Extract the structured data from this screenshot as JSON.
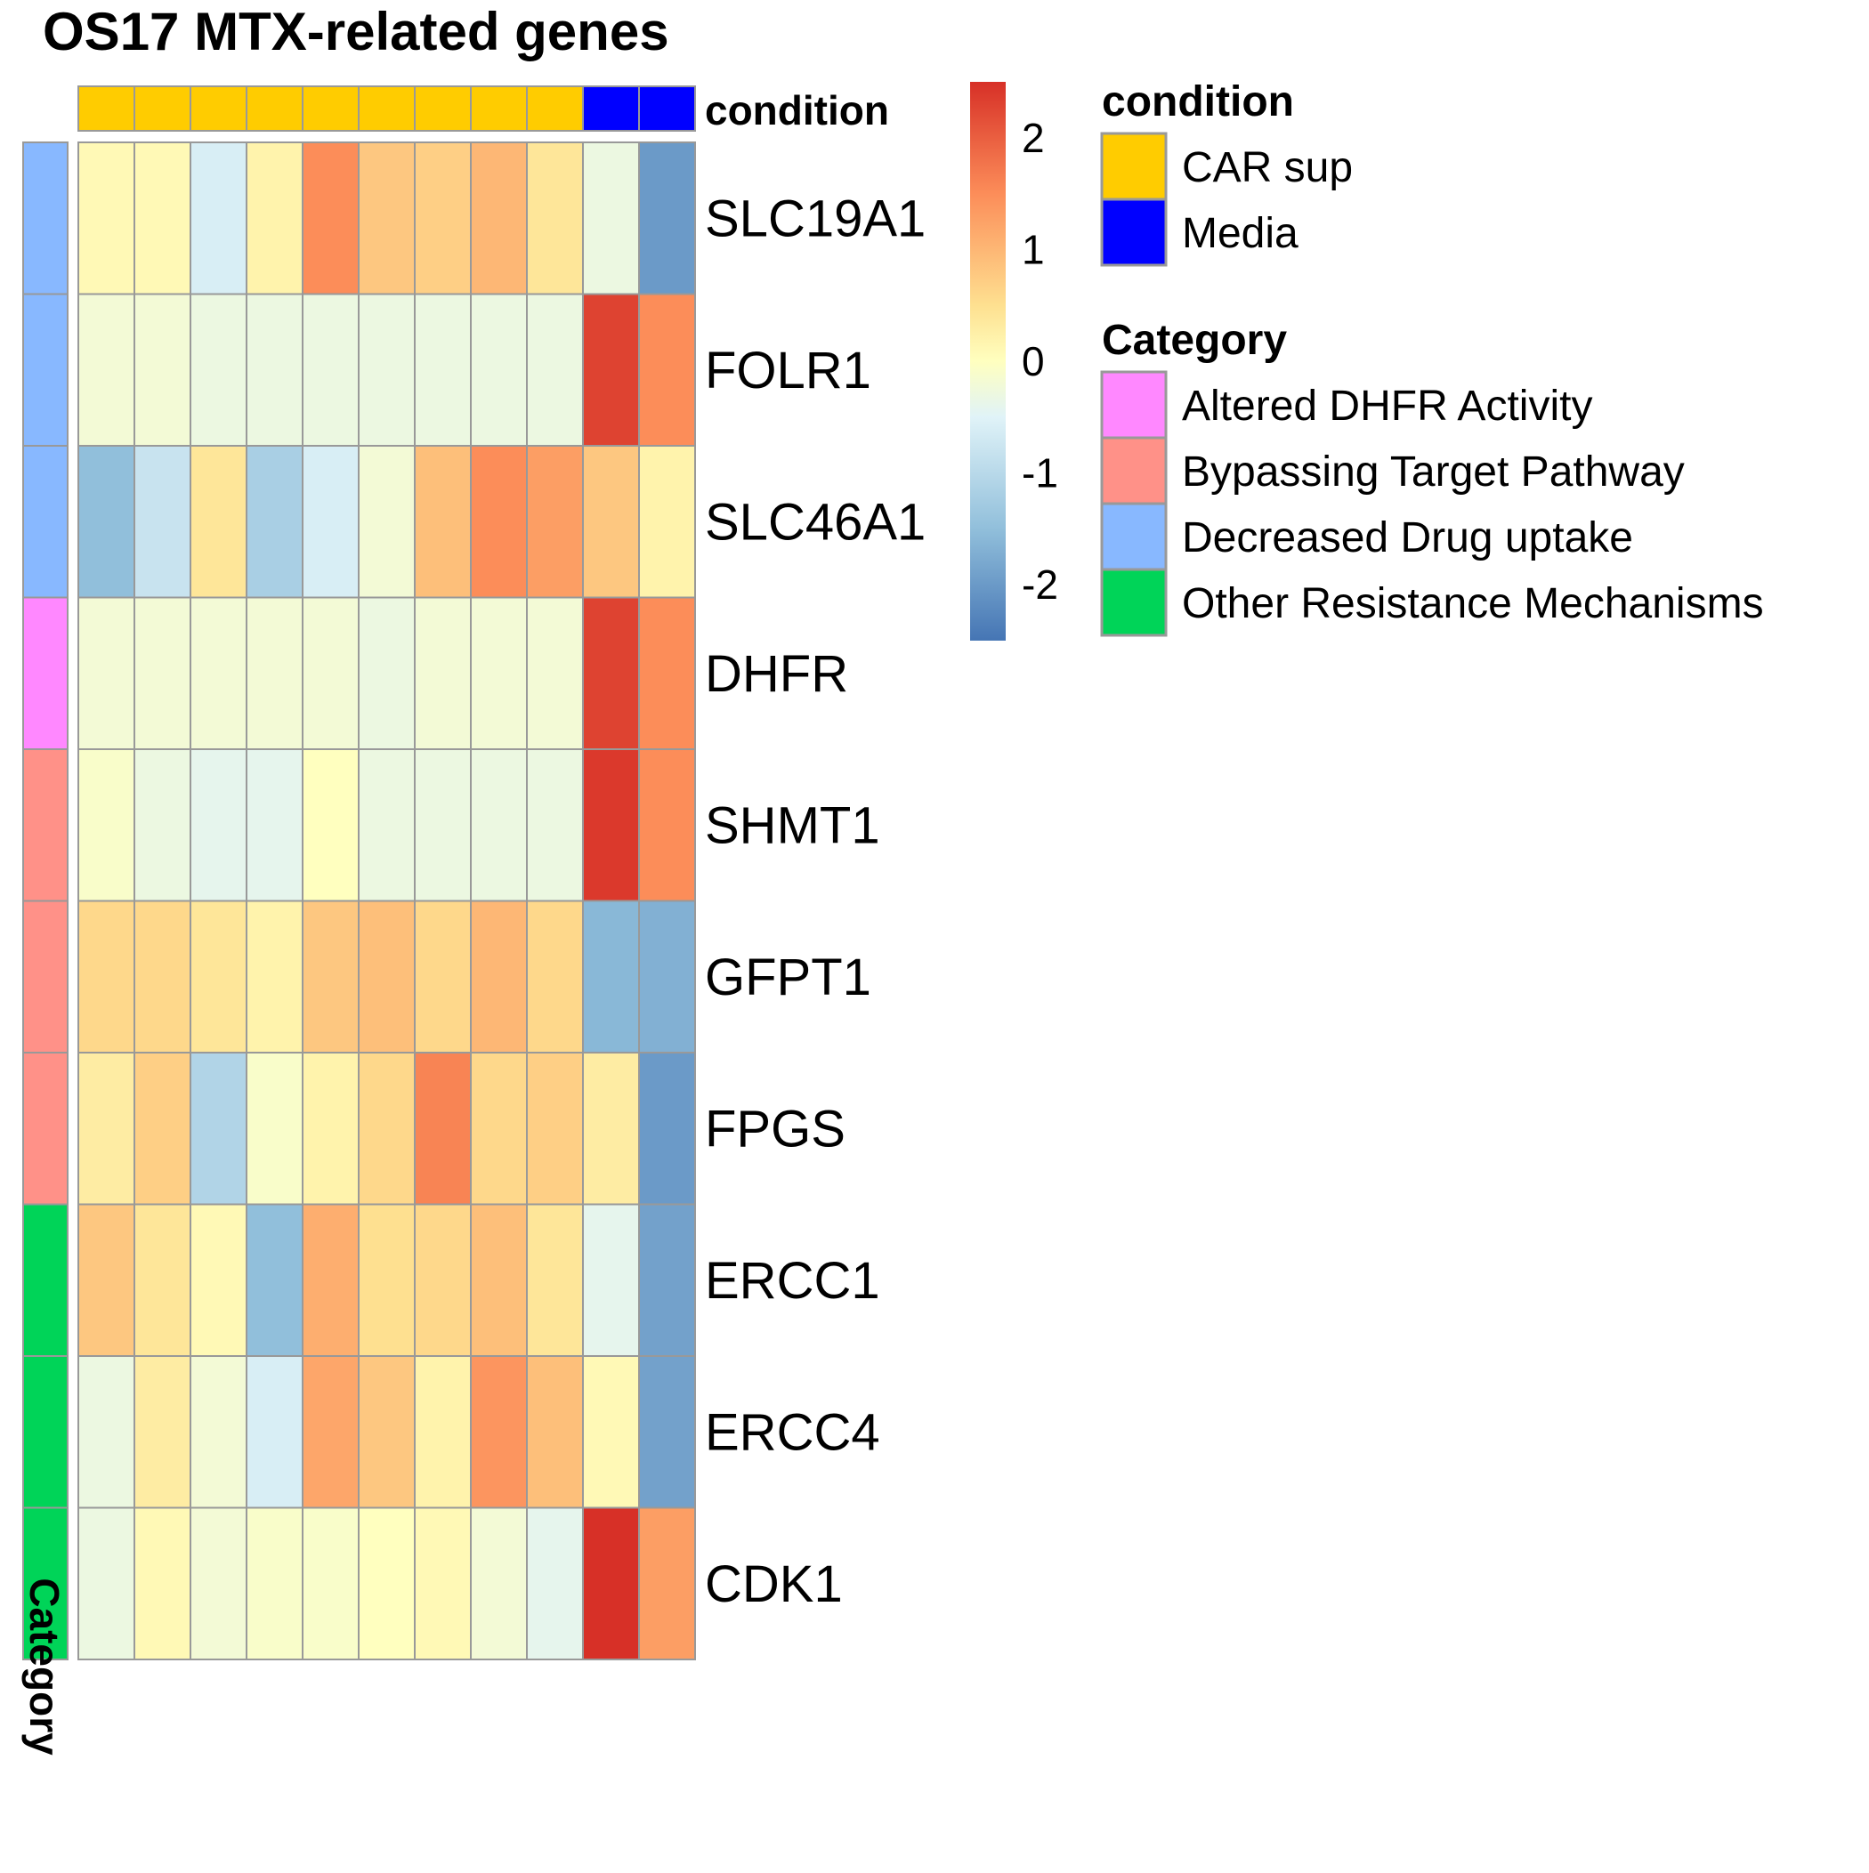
{
  "chart_data": {
    "type": "heatmap",
    "title": "OS17 MTX-related genes",
    "rows": [
      "SLC19A1",
      "FOLR1",
      "SLC46A1",
      "DHFR",
      "SHMT1",
      "GFPT1",
      "FPGS",
      "ERCC1",
      "ERCC4",
      "CDK1"
    ],
    "row_category": [
      "Decreased Drug uptake",
      "Decreased Drug uptake",
      "Decreased Drug uptake",
      "Altered DHFR Activity",
      "Bypassing Target Pathway",
      "Bypassing Target Pathway",
      "Bypassing Target Pathway",
      "Other Resistance Mechanisms",
      "Other Resistance Mechanisms",
      "Other Resistance Mechanisms"
    ],
    "column_condition": [
      "CAR sup",
      "CAR sup",
      "CAR sup",
      "CAR sup",
      "CAR sup",
      "CAR sup",
      "CAR sup",
      "CAR sup",
      "CAR sup",
      "Media",
      "Media"
    ],
    "values": [
      [
        0.1,
        0.1,
        -0.6,
        0.2,
        1.5,
        0.8,
        0.7,
        1.0,
        0.4,
        -0.3,
        -2.0
      ],
      [
        -0.2,
        -0.2,
        -0.3,
        -0.3,
        -0.3,
        -0.3,
        -0.3,
        -0.3,
        -0.3,
        2.3,
        1.5
      ],
      [
        -1.5,
        -0.8,
        0.4,
        -1.2,
        -0.6,
        -0.2,
        0.9,
        1.5,
        1.3,
        0.8,
        0.2
      ],
      [
        -0.2,
        -0.2,
        -0.2,
        -0.2,
        -0.2,
        -0.3,
        -0.2,
        -0.2,
        -0.2,
        2.3,
        1.5
      ],
      [
        -0.1,
        -0.3,
        -0.4,
        -0.4,
        0.0,
        -0.3,
        -0.3,
        -0.3,
        -0.3,
        2.4,
        1.5
      ],
      [
        0.6,
        0.6,
        0.4,
        0.2,
        0.8,
        0.9,
        0.6,
        1.0,
        0.6,
        -1.6,
        -1.7
      ],
      [
        0.3,
        0.7,
        -1.1,
        -0.1,
        0.2,
        0.6,
        1.6,
        0.6,
        0.7,
        0.3,
        -2.0
      ],
      [
        0.8,
        0.4,
        0.1,
        -1.5,
        1.1,
        0.5,
        0.6,
        0.9,
        0.4,
        -0.4,
        -1.9
      ],
      [
        -0.3,
        0.3,
        -0.2,
        -0.6,
        1.2,
        0.8,
        0.2,
        1.4,
        0.9,
        0.1,
        -1.9
      ],
      [
        -0.3,
        0.1,
        -0.2,
        -0.1,
        -0.1,
        0.0,
        0.1,
        -0.2,
        -0.4,
        2.5,
        1.3
      ]
    ],
    "color_scale": {
      "stops": [
        [
          -2.5,
          "#4575b4"
        ],
        [
          -1.5,
          "#91bfdb"
        ],
        [
          -0.5,
          "#e0f3f8"
        ],
        [
          0,
          "#ffffbf"
        ],
        [
          0.5,
          "#fee090"
        ],
        [
          1.5,
          "#fc8d59"
        ],
        [
          2.5,
          "#d73027"
        ]
      ],
      "ticks": [
        2,
        1,
        0,
        -1,
        -2
      ],
      "tick_labels": [
        "2",
        "1",
        "0",
        "-1",
        "-2"
      ],
      "range": [
        -2.5,
        2.5
      ]
    },
    "annotation_bar_labels": {
      "condition": "condition",
      "category": "Category"
    },
    "legends": [
      {
        "title": "condition",
        "items": [
          {
            "label": "CAR sup",
            "color": "#FFCC00"
          },
          {
            "label": "Media",
            "color": "#0000FF"
          }
        ]
      },
      {
        "title": "Category",
        "items": [
          {
            "label": "Altered DHFR Activity",
            "color": "#FF88FF"
          },
          {
            "label": "Bypassing Target Pathway",
            "color": "#FF9188"
          },
          {
            "label": "Decreased Drug uptake",
            "color": "#88B8FF"
          },
          {
            "label": "Other Resistance Mechanisms",
            "color": "#00D458"
          }
        ]
      }
    ],
    "cell_border_color": "#999999"
  }
}
